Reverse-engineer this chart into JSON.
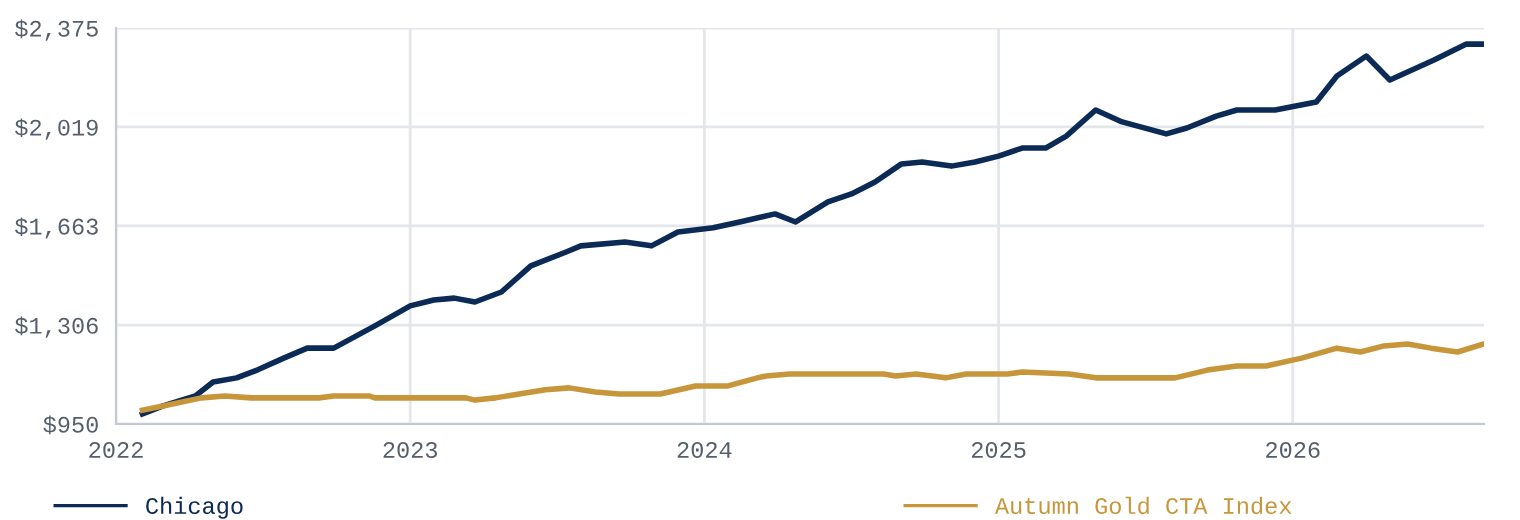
{
  "chart_data": {
    "type": "line",
    "xlim": [
      2022,
      2026.65
    ],
    "xticks": [
      2022,
      2023,
      2024,
      2025,
      2026
    ],
    "ylim": [
      950,
      2375
    ],
    "yticks": [
      {
        "value": 950,
        "label": "$950"
      },
      {
        "value": 1306,
        "label": "$1,306"
      },
      {
        "value": 1663,
        "label": "$1,663"
      },
      {
        "value": 2019,
        "label": "$2,019"
      },
      {
        "value": 2375,
        "label": "$2,375"
      }
    ],
    "grid": true,
    "legend": "bottom",
    "marker": "none",
    "line_style": "solid",
    "series": [
      {
        "name": "Chicago",
        "color": "#0b2a55",
        "x": [
          2022.09,
          2022.16,
          2022.27,
          2022.33,
          2022.41,
          2022.48,
          2022.57,
          2022.65,
          2022.74,
          2022.88,
          2023.0,
          2023.08,
          2023.15,
          2023.22,
          2023.31,
          2023.41,
          2023.53,
          2023.58,
          2023.73,
          2023.82,
          2023.91,
          2024.03,
          2024.12,
          2024.24,
          2024.31,
          2024.42,
          2024.5,
          2024.58,
          2024.67,
          2024.74,
          2024.84,
          2024.92,
          2025.0,
          2025.08,
          2025.16,
          2025.23,
          2025.33,
          2025.42,
          2025.57,
          2025.64,
          2025.74,
          2025.81,
          2025.94,
          2026.01,
          2026.08,
          2026.15,
          2026.25,
          2026.33,
          2026.48,
          2026.59,
          2026.65
        ],
        "values": [
          986,
          1015,
          1051,
          1101,
          1116,
          1144,
          1187,
          1223,
          1223,
          1303,
          1375,
          1396,
          1403,
          1389,
          1425,
          1519,
          1569,
          1591,
          1605,
          1591,
          1641,
          1656,
          1677,
          1706,
          1677,
          1749,
          1778,
          1821,
          1886,
          1893,
          1878,
          1893,
          1914,
          1943,
          1943,
          1986,
          2080,
          2037,
          1994,
          2015,
          2058,
          2080,
          2080,
          2094,
          2109,
          2202,
          2274,
          2188,
          2260,
          2317,
          2317
        ]
      },
      {
        "name": "Autumn Gold CTA Index",
        "color": "#c8963a",
        "x": [
          2022.09,
          2022.16,
          2022.29,
          2022.37,
          2022.46,
          2022.69,
          2022.74,
          2022.86,
          2022.88,
          2023.19,
          2023.22,
          2023.29,
          2023.37,
          2023.46,
          2023.54,
          2023.63,
          2023.71,
          2023.85,
          2023.97,
          2024.08,
          2024.18,
          2024.21,
          2024.29,
          2024.61,
          2024.65,
          2024.72,
          2024.82,
          2024.89,
          2025.03,
          2025.08,
          2025.24,
          2025.33,
          2025.6,
          2025.71,
          2025.81,
          2025.91,
          2026.03,
          2026.15,
          2026.23,
          2026.31,
          2026.39,
          2026.47,
          2026.56,
          2026.65
        ],
        "values": [
          1000,
          1015,
          1044,
          1051,
          1044,
          1044,
          1051,
          1051,
          1044,
          1044,
          1036,
          1044,
          1058,
          1073,
          1080,
          1065,
          1058,
          1058,
          1087,
          1087,
          1116,
          1123,
          1130,
          1130,
          1123,
          1130,
          1116,
          1130,
          1130,
          1137,
          1130,
          1116,
          1116,
          1144,
          1159,
          1159,
          1187,
          1223,
          1209,
          1231,
          1238,
          1223,
          1209,
          1238
        ]
      }
    ]
  }
}
